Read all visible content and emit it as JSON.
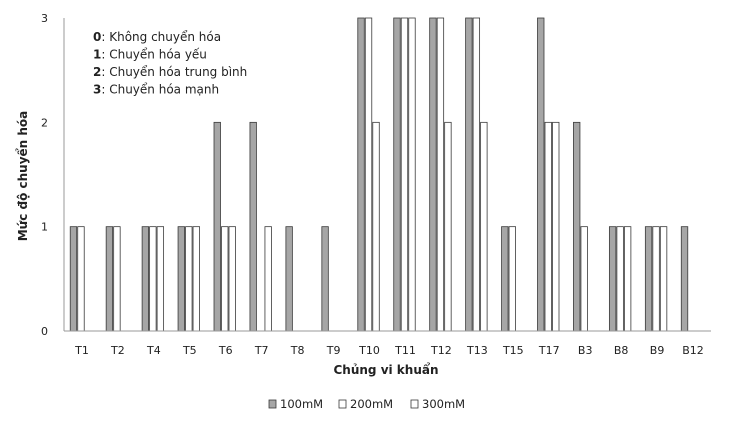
{
  "chart_data": {
    "type": "bar",
    "xlabel": "Chủng vi khuẩn",
    "ylabel": "Mức độ chuyển hóa",
    "ylim": [
      0,
      3
    ],
    "yticks": [
      0,
      1,
      2,
      3
    ],
    "grid": false,
    "legend_position": "bottom",
    "categories": [
      "T1",
      "T2",
      "T4",
      "T5",
      "T6",
      "T7",
      "T8",
      "T9",
      "T10",
      "T11",
      "T12",
      "T13",
      "T15",
      "T17",
      "B3",
      "B8",
      "B9",
      "B12"
    ],
    "series": [
      {
        "name": "100mM",
        "color": "#a6a6a6",
        "values": [
          1,
          1,
          1,
          1,
          2,
          2,
          1,
          1,
          3,
          3,
          3,
          3,
          1,
          3,
          2,
          1,
          1,
          1
        ]
      },
      {
        "name": "200mM",
        "color": "#ffffff",
        "values": [
          1,
          1,
          1,
          1,
          1,
          0,
          0,
          0,
          3,
          3,
          3,
          3,
          1,
          2,
          1,
          1,
          1,
          0
        ]
      },
      {
        "name": "300mM",
        "color": "#ffffff",
        "values": [
          0,
          0,
          1,
          1,
          1,
          1,
          0,
          0,
          2,
          3,
          2,
          2,
          0,
          2,
          0,
          1,
          1,
          0
        ]
      }
    ],
    "annotations": [
      {
        "key": "0",
        "text": ": Không chuyển hóa"
      },
      {
        "key": "1",
        "text": ": Chuyển hóa yếu"
      },
      {
        "key": "2",
        "text": ": Chuyển hóa trung bình"
      },
      {
        "key": "3",
        "text": ": Chuyển hóa mạnh"
      }
    ]
  }
}
